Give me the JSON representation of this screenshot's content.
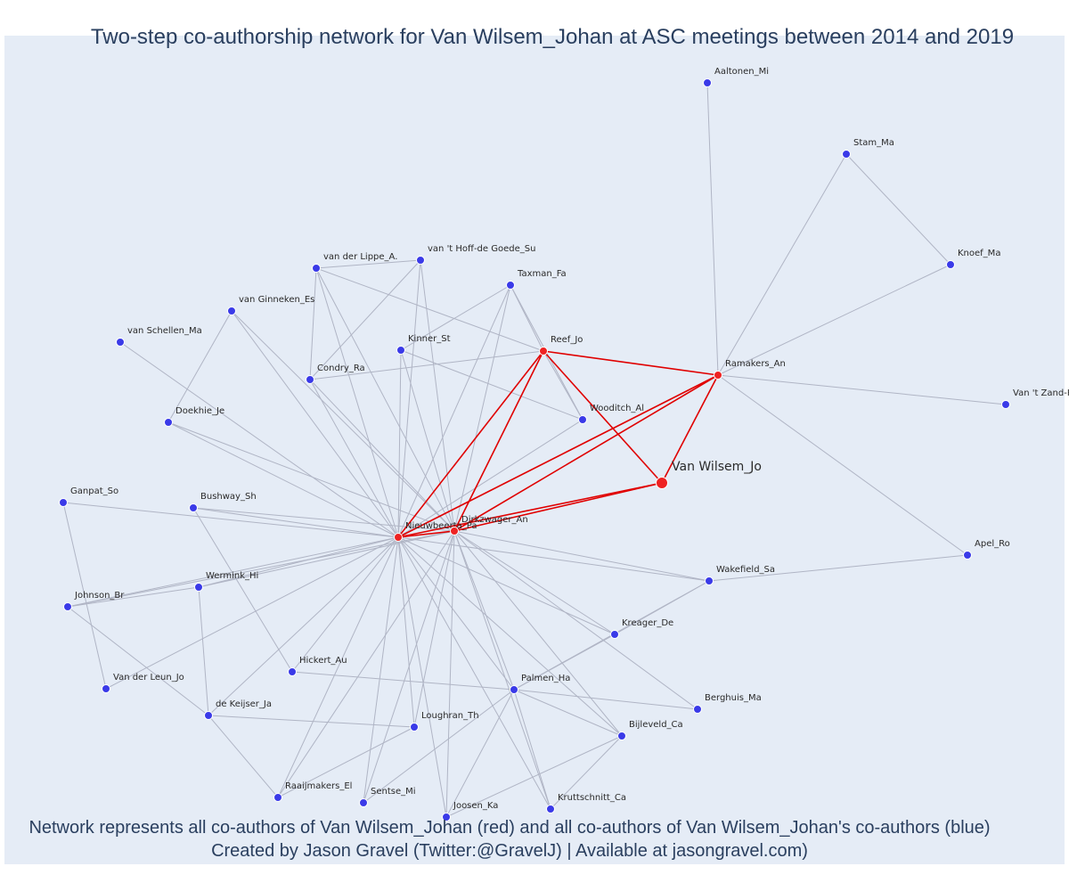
{
  "title": "Two-step co-authorship network for Van Wilsem_Johan at ASC meetings between 2014 and 2019",
  "caption_line1": "Network represents all co-authors of Van Wilsem_Johan (red) and all co-authors of Van Wilsem_Johan's co-authors (blue)",
  "caption_line2": "Created by Jason Gravel (Twitter:@GravelJ) | Available at jasongravel.com)",
  "colors": {
    "background": "#e5ecf6",
    "direct_coauthor": "#ee2222",
    "second_degree": "#3a3ae8",
    "direct_edge": "#e00000",
    "other_edge": "#b0b5c5",
    "text": "#2a3f5f"
  },
  "nodes": [
    {
      "id": "Van Wilsem_Jo",
      "group": "focal"
    },
    {
      "id": "Nieuwbeerta_Pa",
      "group": "direct"
    },
    {
      "id": "Dirkzwager_An",
      "group": "direct"
    },
    {
      "id": "Reef_Jo",
      "group": "direct"
    },
    {
      "id": "Ramakers_An",
      "group": "direct"
    },
    {
      "id": "Aaltonen_Mi",
      "group": "second"
    },
    {
      "id": "Stam_Ma",
      "group": "second"
    },
    {
      "id": "Knoef_Ma",
      "group": "second"
    },
    {
      "id": "Van 't Zand-K",
      "group": "second"
    },
    {
      "id": "Apel_Ro",
      "group": "second"
    },
    {
      "id": "van der Lippe_A.",
      "group": "second"
    },
    {
      "id": "van 't Hoff-de Goede_Su",
      "group": "second"
    },
    {
      "id": "Taxman_Fa",
      "group": "second"
    },
    {
      "id": "van Ginneken_Es",
      "group": "second"
    },
    {
      "id": "van Schellen_Ma",
      "group": "second"
    },
    {
      "id": "Kinner_St",
      "group": "second"
    },
    {
      "id": "Condry_Ra",
      "group": "second"
    },
    {
      "id": "Wooditch_Al",
      "group": "second"
    },
    {
      "id": "Doekhie_Je",
      "group": "second"
    },
    {
      "id": "Ganpat_So",
      "group": "second"
    },
    {
      "id": "Bushway_Sh",
      "group": "second"
    },
    {
      "id": "Wermink_Hi",
      "group": "second"
    },
    {
      "id": "Johnson_Br",
      "group": "second"
    },
    {
      "id": "Wakefield_Sa",
      "group": "second"
    },
    {
      "id": "Kreager_De",
      "group": "second"
    },
    {
      "id": "Hickert_Au",
      "group": "second"
    },
    {
      "id": "Van der Leun_Jo",
      "group": "second"
    },
    {
      "id": "Palmen_Ha",
      "group": "second"
    },
    {
      "id": "Berghuis_Ma",
      "group": "second"
    },
    {
      "id": "de Keijser_Ja",
      "group": "second"
    },
    {
      "id": "Loughran_Th",
      "group": "second"
    },
    {
      "id": "Bijleveld_Ca",
      "group": "second"
    },
    {
      "id": "Raaijmakers_El",
      "group": "second"
    },
    {
      "id": "Sentse_Mi",
      "group": "second"
    },
    {
      "id": "Joosen_Ka",
      "group": "second"
    },
    {
      "id": "Kruttschnitt_Ca",
      "group": "second"
    }
  ],
  "edges": [
    [
      "Van Wilsem_Jo",
      "Nieuwbeerta_Pa"
    ],
    [
      "Van Wilsem_Jo",
      "Dirkzwager_An"
    ],
    [
      "Van Wilsem_Jo",
      "Reef_Jo"
    ],
    [
      "Van Wilsem_Jo",
      "Ramakers_An"
    ],
    [
      "Nieuwbeerta_Pa",
      "Dirkzwager_An"
    ],
    [
      "Nieuwbeerta_Pa",
      "Reef_Jo"
    ],
    [
      "Nieuwbeerta_Pa",
      "Ramakers_An"
    ],
    [
      "Dirkzwager_An",
      "Reef_Jo"
    ],
    [
      "Dirkzwager_An",
      "Ramakers_An"
    ],
    [
      "Reef_Jo",
      "Ramakers_An"
    ],
    [
      "Ramakers_An",
      "Aaltonen_Mi"
    ],
    [
      "Ramakers_An",
      "Stam_Ma"
    ],
    [
      "Ramakers_An",
      "Knoef_Ma"
    ],
    [
      "Ramakers_An",
      "Van 't Zand-K"
    ],
    [
      "Ramakers_An",
      "Apel_Ro"
    ],
    [
      "Stam_Ma",
      "Knoef_Ma"
    ],
    [
      "Reef_Jo",
      "Taxman_Fa"
    ],
    [
      "Reef_Jo",
      "Condry_Ra"
    ],
    [
      "Reef_Jo",
      "Wooditch_Al"
    ],
    [
      "Reef_Jo",
      "van der Lippe_A."
    ],
    [
      "Taxman_Fa",
      "Kinner_St"
    ],
    [
      "Taxman_Fa",
      "Wooditch_Al"
    ],
    [
      "Kinner_St",
      "Wooditch_Al"
    ],
    [
      "van 't Hoff-de Goede_Su",
      "Condry_Ra"
    ],
    [
      "van der Lippe_A.",
      "Condry_Ra"
    ],
    [
      "van der Lippe_A.",
      "van 't Hoff-de Goede_Su"
    ],
    [
      "van Ginneken_Es",
      "Doekhie_Je"
    ],
    [
      "van Ginneken_Es",
      "Dirkzwager_An"
    ],
    [
      "van Ginneken_Es",
      "Nieuwbeerta_Pa"
    ],
    [
      "van Schellen_Ma",
      "Nieuwbeerta_Pa"
    ],
    [
      "Doekhie_Je",
      "Nieuwbeerta_Pa"
    ],
    [
      "Doekhie_Je",
      "Dirkzwager_An"
    ],
    [
      "Ganpat_So",
      "Nieuwbeerta_Pa"
    ],
    [
      "Ganpat_So",
      "Van der Leun_Jo"
    ],
    [
      "Bushway_Sh",
      "Nieuwbeerta_Pa"
    ],
    [
      "Bushway_Sh",
      "Dirkzwager_An"
    ],
    [
      "Bushway_Sh",
      "Hickert_Au"
    ],
    [
      "Wermink_Hi",
      "Nieuwbeerta_Pa"
    ],
    [
      "Wermink_Hi",
      "Dirkzwager_An"
    ],
    [
      "Wermink_Hi",
      "Johnson_Br"
    ],
    [
      "Wermink_Hi",
      "de Keijser_Ja"
    ],
    [
      "Johnson_Br",
      "Nieuwbeerta_Pa"
    ],
    [
      "Johnson_Br",
      "Dirkzwager_An"
    ],
    [
      "Johnson_Br",
      "de Keijser_Ja"
    ],
    [
      "Van der Leun_Jo",
      "Nieuwbeerta_Pa"
    ],
    [
      "Wakefield_Sa",
      "Nieuwbeerta_Pa"
    ],
    [
      "Wakefield_Sa",
      "Dirkzwager_An"
    ],
    [
      "Wakefield_Sa",
      "Apel_Ro"
    ],
    [
      "Wakefield_Sa",
      "Kreager_De"
    ],
    [
      "Wakefield_Sa",
      "Palmen_Ha"
    ],
    [
      "Kreager_De",
      "Nieuwbeerta_Pa"
    ],
    [
      "Kreager_De",
      "Dirkzwager_An"
    ],
    [
      "Kreager_De",
      "Palmen_Ha"
    ],
    [
      "Hickert_Au",
      "Nieuwbeerta_Pa"
    ],
    [
      "Hickert_Au",
      "Palmen_Ha"
    ],
    [
      "Palmen_Ha",
      "Nieuwbeerta_Pa"
    ],
    [
      "Palmen_Ha",
      "Dirkzwager_An"
    ],
    [
      "Palmen_Ha",
      "Berghuis_Ma"
    ],
    [
      "Palmen_Ha",
      "Bijleveld_Ca"
    ],
    [
      "Palmen_Ha",
      "Kruttschnitt_Ca"
    ],
    [
      "Palmen_Ha",
      "Joosen_Ka"
    ],
    [
      "Palmen_Ha",
      "Sentse_Mi"
    ],
    [
      "Berghuis_Ma",
      "Dirkzwager_An"
    ],
    [
      "de Keijser_Ja",
      "Nieuwbeerta_Pa"
    ],
    [
      "de Keijser_Ja",
      "Loughran_Th"
    ],
    [
      "de Keijser_Ja",
      "Raaijmakers_El"
    ],
    [
      "Loughran_Th",
      "Nieuwbeerta_Pa"
    ],
    [
      "Loughran_Th",
      "Dirkzwager_An"
    ],
    [
      "Loughran_Th",
      "Raaijmakers_El"
    ],
    [
      "Bijleveld_Ca",
      "Nieuwbeerta_Pa"
    ],
    [
      "Bijleveld_Ca",
      "Dirkzwager_An"
    ],
    [
      "Bijleveld_Ca",
      "Joosen_Ka"
    ],
    [
      "Bijleveld_Ca",
      "Kruttschnitt_Ca"
    ],
    [
      "Raaijmakers_El",
      "Nieuwbeerta_Pa"
    ],
    [
      "Raaijmakers_El",
      "Dirkzwager_An"
    ],
    [
      "Sentse_Mi",
      "Nieuwbeerta_Pa"
    ],
    [
      "Sentse_Mi",
      "Dirkzwager_An"
    ],
    [
      "Joosen_Ka",
      "Nieuwbeerta_Pa"
    ],
    [
      "Joosen_Ka",
      "Dirkzwager_An"
    ],
    [
      "Kruttschnitt_Ca",
      "Nieuwbeerta_Pa"
    ],
    [
      "Kruttschnitt_Ca",
      "Dirkzwager_An"
    ],
    [
      "van der Lippe_A.",
      "Nieuwbeerta_Pa"
    ],
    [
      "van der Lippe_A.",
      "Dirkzwager_An"
    ],
    [
      "van 't Hoff-de Goede_Su",
      "Nieuwbeerta_Pa"
    ],
    [
      "van 't Hoff-de Goede_Su",
      "Dirkzwager_An"
    ],
    [
      "Taxman_Fa",
      "Nieuwbeerta_Pa"
    ],
    [
      "Taxman_Fa",
      "Dirkzwager_An"
    ],
    [
      "Kinner_St",
      "Nieuwbeerta_Pa"
    ],
    [
      "Kinner_St",
      "Dirkzwager_An"
    ],
    [
      "Condry_Ra",
      "Nieuwbeerta_Pa"
    ],
    [
      "Condry_Ra",
      "Dirkzwager_An"
    ],
    [
      "Wooditch_Al",
      "Nieuwbeerta_Pa"
    ]
  ]
}
